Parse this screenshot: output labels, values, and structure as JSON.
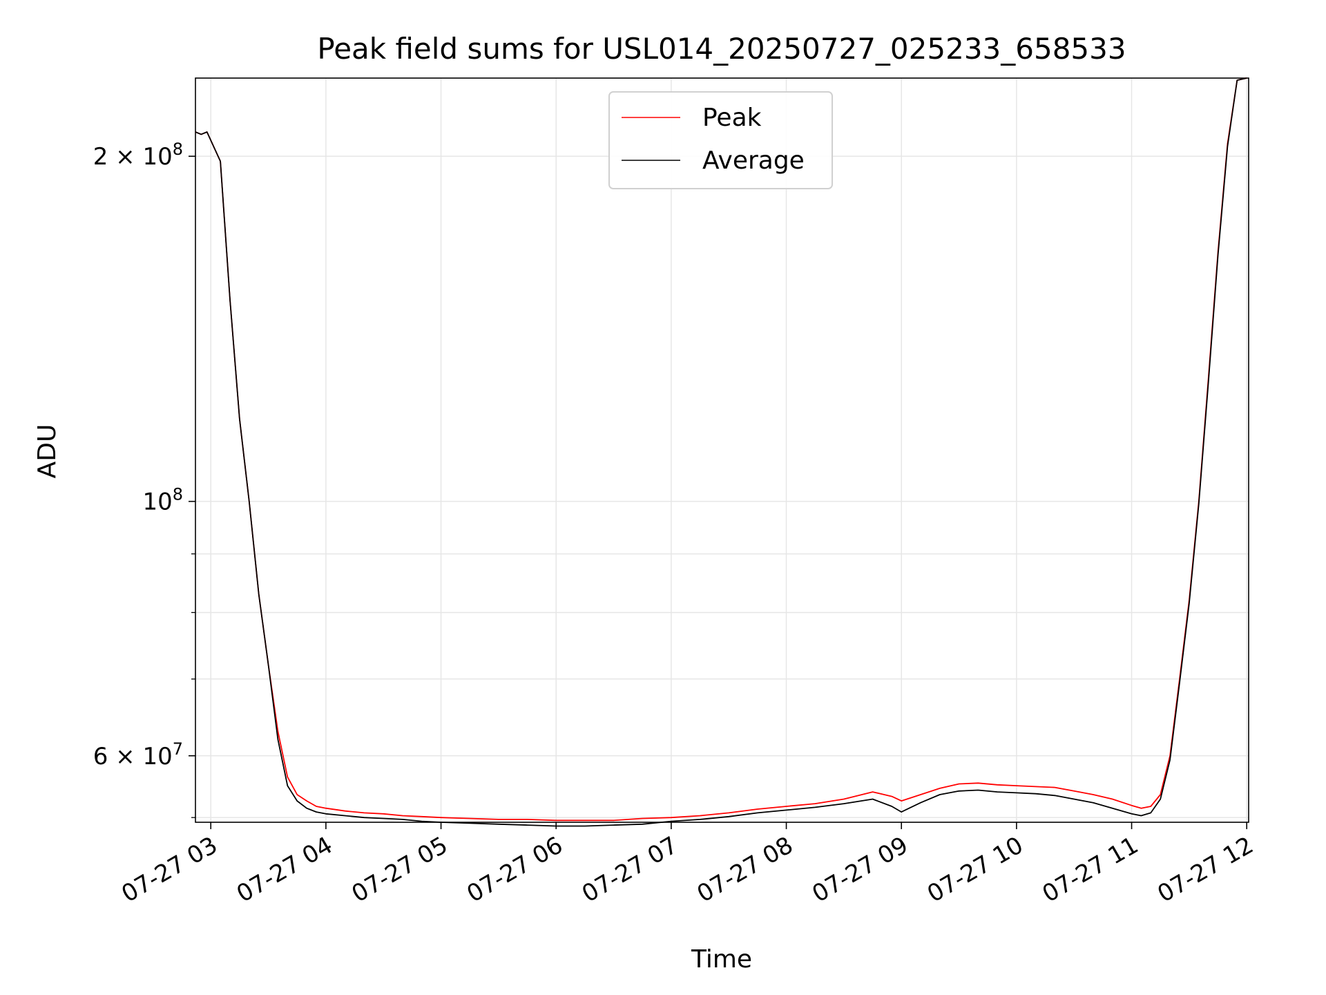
{
  "chart_data": {
    "type": "line",
    "title": "Peak field sums for USL014_20250727_025233_658533",
    "xlabel": "Time",
    "ylabel": "ADU",
    "yscale": "log",
    "ylim": [
      52500000,
      234000000
    ],
    "xlim": [
      "07-27 02:52",
      "07-27 12:01"
    ],
    "x_ticks": [
      "07-27 03",
      "07-27 04",
      "07-27 05",
      "07-27 06",
      "07-27 07",
      "07-27 08",
      "07-27 09",
      "07-27 10",
      "07-27 11",
      "07-27 12"
    ],
    "y_ticks": [
      {
        "value": 200000000,
        "label": "2 × 10",
        "exp": "8"
      },
      {
        "value": 100000000,
        "label": "10",
        "exp": "8"
      },
      {
        "value": 60000000,
        "label": "6 × 10",
        "exp": "7"
      }
    ],
    "y_minor_ticks": [
      53000000,
      70000000,
      80000000,
      90000000
    ],
    "grid": true,
    "legend": "upper center",
    "series": [
      {
        "name": "Peak",
        "color": "#ff0000",
        "x": [
          "02:52",
          "02:55",
          "02:58",
          "03:05",
          "03:10",
          "03:15",
          "03:20",
          "03:25",
          "03:30",
          "03:35",
          "03:40",
          "03:45",
          "03:50",
          "03:55",
          "04:00",
          "04:10",
          "04:20",
          "04:30",
          "04:40",
          "04:50",
          "05:00",
          "05:15",
          "05:30",
          "05:45",
          "06:00",
          "06:15",
          "06:30",
          "06:45",
          "07:00",
          "07:15",
          "07:30",
          "07:45",
          "08:00",
          "08:15",
          "08:30",
          "08:45",
          "08:55",
          "09:00",
          "09:10",
          "09:20",
          "09:30",
          "09:40",
          "09:50",
          "10:00",
          "10:10",
          "10:20",
          "10:30",
          "10:40",
          "10:50",
          "11:00",
          "11:05",
          "11:10",
          "11:15",
          "11:20",
          "11:25",
          "11:30",
          "11:35",
          "11:40",
          "11:45",
          "11:50",
          "11:55",
          "12:00"
        ],
        "y": [
          210000000,
          209000000,
          210000000,
          198000000,
          150000000,
          118000000,
          100000000,
          83000000,
          72000000,
          63000000,
          57500000,
          55500000,
          54800000,
          54200000,
          54000000,
          53700000,
          53500000,
          53400000,
          53200000,
          53100000,
          53000000,
          52900000,
          52800000,
          52800000,
          52700000,
          52700000,
          52700000,
          52900000,
          53000000,
          53200000,
          53500000,
          53900000,
          54200000,
          54500000,
          55000000,
          55800000,
          55300000,
          54800000,
          55500000,
          56200000,
          56700000,
          56800000,
          56600000,
          56500000,
          56400000,
          56300000,
          55900000,
          55500000,
          55000000,
          54300000,
          54000000,
          54200000,
          55500000,
          60000000,
          70000000,
          82000000,
          100000000,
          128000000,
          165000000,
          205000000,
          233000000,
          234000000
        ]
      },
      {
        "name": "Average",
        "color": "#000000",
        "x": [
          "02:52",
          "02:55",
          "02:58",
          "03:05",
          "03:10",
          "03:15",
          "03:20",
          "03:25",
          "03:30",
          "03:35",
          "03:40",
          "03:45",
          "03:50",
          "03:55",
          "04:00",
          "04:10",
          "04:20",
          "04:30",
          "04:40",
          "04:50",
          "05:00",
          "05:15",
          "05:30",
          "05:45",
          "06:00",
          "06:15",
          "06:30",
          "06:45",
          "07:00",
          "07:15",
          "07:30",
          "07:45",
          "08:00",
          "08:15",
          "08:30",
          "08:45",
          "08:55",
          "09:00",
          "09:10",
          "09:20",
          "09:30",
          "09:40",
          "09:50",
          "10:00",
          "10:10",
          "10:20",
          "10:30",
          "10:40",
          "10:50",
          "11:00",
          "11:05",
          "11:10",
          "11:15",
          "11:20",
          "11:25",
          "11:30",
          "11:35",
          "11:40",
          "11:45",
          "11:50",
          "11:55",
          "12:00"
        ],
        "y": [
          210000000,
          209000000,
          210000000,
          198000000,
          150000000,
          118000000,
          100000000,
          83000000,
          72000000,
          62000000,
          56500000,
          54800000,
          54000000,
          53600000,
          53400000,
          53200000,
          53000000,
          52900000,
          52800000,
          52600000,
          52500000,
          52400000,
          52300000,
          52200000,
          52100000,
          52100000,
          52200000,
          52300000,
          52600000,
          52800000,
          53100000,
          53500000,
          53800000,
          54100000,
          54500000,
          55000000,
          54200000,
          53600000,
          54600000,
          55500000,
          55900000,
          56000000,
          55800000,
          55700000,
          55600000,
          55400000,
          55000000,
          54600000,
          54000000,
          53400000,
          53200000,
          53500000,
          55000000,
          59500000,
          69500000,
          81500000,
          99500000,
          127000000,
          164000000,
          204000000,
          233000000,
          234000000
        ]
      }
    ]
  }
}
